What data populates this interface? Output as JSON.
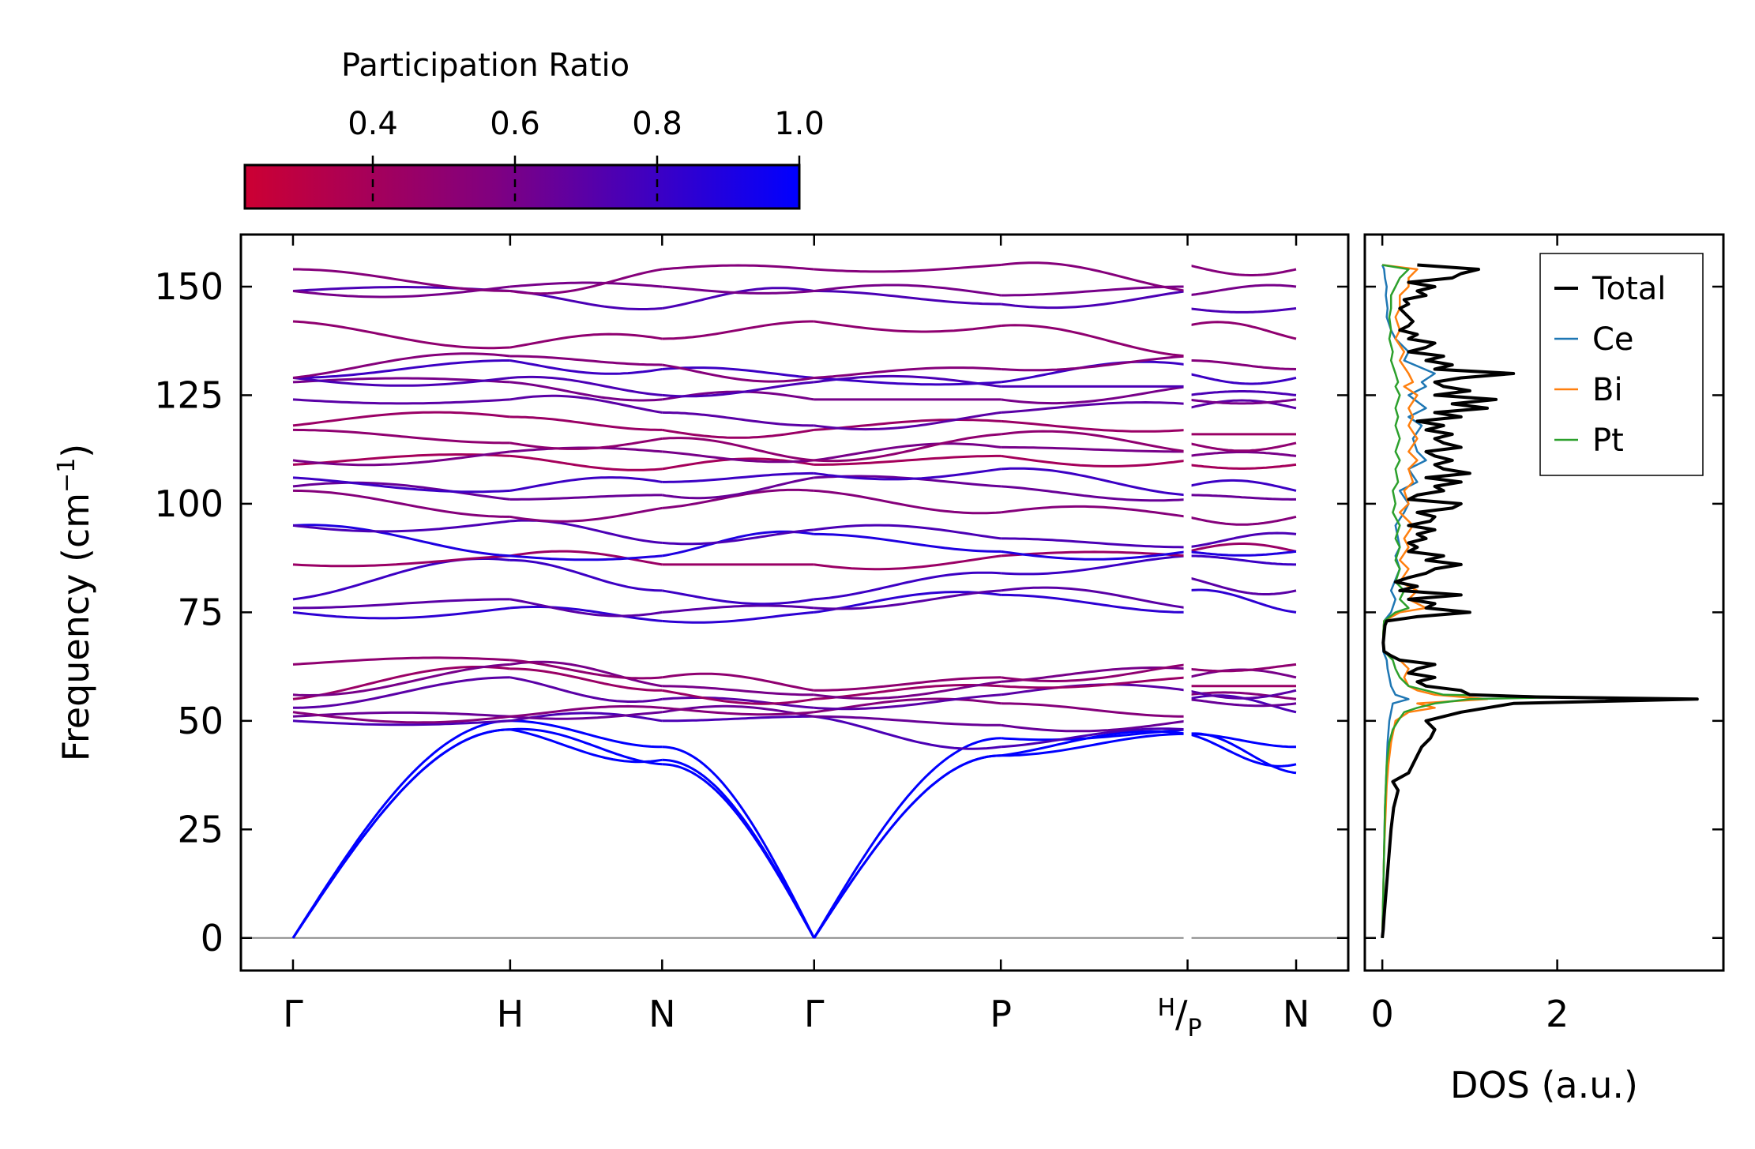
{
  "chart_data": [
    {
      "type": "line",
      "name": "phonon-band-structure",
      "ylabel": "Frequency (cm",
      "ylabel_sup": "−1",
      "ylabel_close": ")",
      "ylim": [
        -7.5,
        162
      ],
      "yticks": [
        0,
        25,
        50,
        75,
        100,
        125,
        150
      ],
      "ytick_labels": [
        "0",
        "25",
        "50",
        "75",
        "100",
        "125",
        "150"
      ],
      "xticks": [
        {
          "pos": 0.0,
          "label": "Γ"
        },
        {
          "pos": 1.0,
          "label": "H"
        },
        {
          "pos": 1.7,
          "label": "N"
        },
        {
          "pos": 2.4,
          "label": "Γ"
        },
        {
          "pos": 3.26,
          "label": "P"
        },
        {
          "pos": 4.12,
          "label": "H",
          "label2": "/",
          "label3": "P",
          "split": true
        },
        {
          "pos": 4.62,
          "label": "N"
        }
      ],
      "xlim": [
        -0.24,
        4.86
      ],
      "nodes": [
        "Γ",
        "H",
        "N",
        "Γ",
        "P",
        "H",
        "P",
        "N"
      ],
      "segments": [
        [
          0,
          1
        ],
        [
          1,
          2
        ],
        [
          2,
          3
        ],
        [
          3,
          4
        ],
        [
          4,
          5
        ],
        [
          6,
          7
        ]
      ],
      "branch_node_freqs": [
        [
          0,
          48,
          40,
          0,
          42,
          47,
          47,
          38
        ],
        [
          0,
          48,
          41,
          0,
          42,
          47,
          47,
          40
        ],
        [
          0,
          50,
          44,
          0,
          46,
          48,
          47,
          44
        ],
        [
          50,
          50,
          50,
          51,
          44,
          48,
          55,
          52
        ],
        [
          51,
          51,
          52,
          51,
          49,
          50,
          55,
          54
        ],
        [
          52,
          51,
          53,
          52,
          54,
          51,
          56,
          55
        ],
        [
          53,
          60,
          55,
          53,
          56,
          57,
          57,
          57
        ],
        [
          55,
          62,
          57,
          55,
          58,
          60,
          58,
          58
        ],
        [
          56,
          63,
          58,
          56,
          59,
          62,
          60,
          60
        ],
        [
          63,
          64,
          60,
          57,
          60,
          63,
          62,
          63
        ],
        [
          75,
          76,
          73,
          75,
          79,
          75,
          80,
          75
        ],
        [
          76,
          78,
          75,
          76,
          80,
          76,
          83,
          80
        ],
        [
          78,
          87,
          80,
          78,
          84,
          88,
          88,
          86
        ],
        [
          86,
          88,
          86,
          86,
          88,
          88,
          89,
          89
        ],
        [
          95,
          88,
          88,
          93,
          89,
          89,
          89,
          89
        ],
        [
          95,
          96,
          91,
          94,
          92,
          90,
          90,
          93
        ],
        [
          103,
          97,
          99,
          103,
          98,
          97,
          97,
          97
        ],
        [
          104,
          101,
          102,
          106,
          104,
          101,
          102,
          101
        ],
        [
          106,
          103,
          105,
          107,
          108,
          102,
          104,
          103
        ],
        [
          109,
          111,
          108,
          109,
          111,
          110,
          109,
          109
        ],
        [
          110,
          112,
          112,
          110,
          113,
          112,
          111,
          111
        ],
        [
          117,
          114,
          115,
          110,
          116,
          112,
          114,
          114
        ],
        [
          118,
          120,
          117,
          117,
          119,
          117,
          116,
          116
        ],
        [
          124,
          124,
          121,
          118,
          121,
          123,
          122,
          122
        ],
        [
          128,
          128,
          124,
          124,
          124,
          127,
          124,
          124
        ],
        [
          129,
          129,
          125,
          128,
          127,
          127,
          125,
          125
        ],
        [
          129,
          133,
          131,
          129,
          128,
          132,
          130,
          129
        ],
        [
          129,
          134,
          132,
          129,
          131,
          134,
          133,
          131
        ],
        [
          142,
          136,
          138,
          142,
          141,
          134,
          141,
          138
        ],
        [
          149,
          149,
          145,
          149,
          146,
          149,
          145,
          145
        ],
        [
          149,
          150,
          150,
          149,
          148,
          150,
          148,
          150
        ],
        [
          154,
          149,
          154,
          154,
          155,
          149,
          155,
          154
        ]
      ],
      "branch_participation": [
        1.0,
        1.0,
        1.0,
        0.75,
        0.65,
        0.55,
        0.7,
        0.45,
        0.6,
        0.5,
        0.85,
        0.7,
        0.8,
        0.45,
        0.9,
        0.75,
        0.55,
        0.65,
        0.8,
        0.4,
        0.6,
        0.5,
        0.45,
        0.7,
        0.6,
        0.75,
        0.8,
        0.55,
        0.5,
        0.75,
        0.6,
        0.55
      ]
    },
    {
      "type": "line",
      "name": "phonon-dos",
      "xlabel": "DOS (a.u.)",
      "xlim": [
        -0.2,
        3.9
      ],
      "xticks": [
        0,
        2
      ],
      "xtick_labels": [
        "0",
        "2"
      ],
      "ylim": [
        -7.5,
        162
      ],
      "legend_position": "top-right",
      "series": [
        {
          "name": "Total",
          "color": "#000000",
          "freq": [
            0,
            2,
            5,
            10,
            15,
            20,
            25,
            30,
            34,
            36,
            38,
            40,
            42,
            44,
            46,
            48,
            50,
            51,
            52,
            53,
            54,
            55,
            55.5,
            56,
            57,
            58,
            59,
            60,
            61,
            62,
            63,
            64,
            65,
            66,
            68,
            70,
            72,
            73,
            74,
            75,
            76,
            77,
            78,
            79,
            80,
            81,
            82,
            83,
            84,
            85,
            86,
            87,
            88,
            89,
            90,
            91,
            92,
            93,
            94,
            95,
            96,
            97,
            98,
            99,
            100,
            101,
            102,
            103,
            104,
            105,
            106,
            107,
            108,
            109,
            110,
            111,
            112,
            113,
            114,
            115,
            116,
            117,
            118,
            119,
            120,
            121,
            122,
            123,
            124,
            125,
            126,
            127,
            128,
            129,
            130,
            131,
            132,
            133,
            134,
            135,
            136,
            137,
            138,
            139,
            140,
            141,
            142,
            143,
            144,
            145,
            146,
            147,
            148,
            149,
            150,
            151,
            152,
            153,
            154,
            155
          ],
          "values": [
            0.0,
            0.01,
            0.02,
            0.04,
            0.06,
            0.08,
            0.1,
            0.13,
            0.18,
            0.12,
            0.3,
            0.35,
            0.4,
            0.45,
            0.55,
            0.6,
            0.5,
            0.7,
            0.9,
            1.2,
            1.5,
            3.6,
            1.8,
            1.0,
            0.9,
            0.5,
            0.4,
            0.6,
            0.3,
            0.4,
            0.6,
            0.2,
            0.1,
            0.02,
            0.01,
            0.02,
            0.03,
            0.05,
            0.4,
            1.0,
            0.5,
            0.6,
            0.3,
            0.9,
            0.2,
            0.4,
            0.15,
            0.3,
            0.5,
            0.6,
            0.9,
            0.5,
            0.7,
            0.3,
            0.4,
            0.3,
            0.5,
            0.4,
            0.6,
            0.3,
            0.55,
            0.6,
            0.4,
            0.8,
            0.9,
            0.3,
            0.4,
            0.7,
            0.6,
            0.9,
            0.5,
            1.0,
            0.7,
            0.6,
            0.8,
            0.6,
            0.5,
            0.9,
            0.7,
            0.6,
            0.8,
            0.5,
            0.7,
            0.4,
            0.9,
            0.6,
            1.2,
            0.8,
            1.3,
            0.6,
            1.0,
            0.7,
            0.6,
            0.9,
            1.5,
            0.6,
            0.8,
            0.5,
            0.7,
            0.3,
            0.5,
            0.6,
            0.3,
            0.4,
            0.2,
            0.3,
            0.35,
            0.3,
            0.25,
            0.2,
            0.3,
            0.25,
            0.5,
            0.4,
            0.6,
            0.3,
            0.8,
            0.9,
            1.1,
            0.4
          ]
        },
        {
          "name": "Ce",
          "color": "#1f77b4",
          "freq": [
            0,
            5,
            10,
            20,
            30,
            35,
            40,
            45,
            50,
            52,
            54,
            55,
            56,
            58,
            60,
            62,
            64,
            66,
            70,
            73,
            75,
            78,
            80,
            85,
            88,
            90,
            95,
            98,
            100,
            103,
            105,
            108,
            110,
            112,
            115,
            118,
            120,
            122,
            125,
            127,
            128,
            130,
            133,
            135,
            138,
            140,
            143,
            145,
            148,
            150,
            152,
            154,
            155
          ],
          "values": [
            0.0,
            0.005,
            0.01,
            0.02,
            0.03,
            0.04,
            0.05,
            0.06,
            0.08,
            0.1,
            0.12,
            0.3,
            0.15,
            0.1,
            0.08,
            0.06,
            0.05,
            0.01,
            0.01,
            0.02,
            0.1,
            0.15,
            0.1,
            0.2,
            0.15,
            0.2,
            0.15,
            0.25,
            0.3,
            0.2,
            0.4,
            0.3,
            0.5,
            0.4,
            0.35,
            0.45,
            0.3,
            0.5,
            0.3,
            0.5,
            0.45,
            0.6,
            0.25,
            0.3,
            0.15,
            0.1,
            0.05,
            0.06,
            0.04,
            0.05,
            0.03,
            0.02,
            0.0
          ]
        },
        {
          "name": "Bi",
          "color": "#ff7f0e",
          "freq": [
            0,
            5,
            10,
            20,
            30,
            35,
            40,
            45,
            50,
            52,
            53,
            54,
            55,
            56,
            57,
            58,
            60,
            62,
            64,
            66,
            70,
            73,
            75,
            76,
            78,
            80,
            82,
            85,
            87,
            90,
            92,
            95,
            98,
            100,
            103,
            105,
            108,
            110,
            112,
            115,
            118,
            120,
            122,
            125,
            127,
            128,
            130,
            133,
            135,
            138,
            140,
            143,
            145,
            148,
            150,
            152,
            154,
            155
          ],
          "values": [
            0.0,
            0.005,
            0.01,
            0.02,
            0.04,
            0.05,
            0.07,
            0.1,
            0.15,
            0.3,
            0.6,
            0.4,
            1.2,
            0.6,
            0.4,
            0.3,
            0.25,
            0.3,
            0.2,
            0.02,
            0.01,
            0.02,
            0.2,
            0.5,
            0.3,
            0.4,
            0.2,
            0.3,
            0.2,
            0.3,
            0.25,
            0.35,
            0.2,
            0.3,
            0.25,
            0.35,
            0.3,
            0.4,
            0.3,
            0.4,
            0.3,
            0.35,
            0.3,
            0.4,
            0.25,
            0.35,
            0.3,
            0.2,
            0.25,
            0.15,
            0.2,
            0.15,
            0.2,
            0.2,
            0.3,
            0.3,
            0.4,
            0.0
          ]
        },
        {
          "name": "Pt",
          "color": "#2ca02c",
          "freq": [
            0,
            5,
            10,
            20,
            30,
            35,
            40,
            45,
            48,
            50,
            52,
            53,
            54,
            55,
            55.5,
            56,
            57,
            58,
            60,
            62,
            64,
            66,
            70,
            73,
            75,
            76,
            78,
            80,
            82,
            85,
            87,
            90,
            92,
            95,
            98,
            100,
            103,
            105,
            108,
            110,
            112,
            115,
            118,
            120,
            122,
            125,
            127,
            128,
            130,
            133,
            135,
            138,
            140,
            143,
            145,
            148,
            150,
            152,
            154,
            155
          ],
          "values": [
            0.0,
            0.005,
            0.01,
            0.02,
            0.03,
            0.04,
            0.05,
            0.08,
            0.12,
            0.18,
            0.25,
            0.4,
            0.6,
            1.0,
            2.2,
            0.7,
            0.5,
            0.3,
            0.2,
            0.15,
            0.12,
            0.02,
            0.01,
            0.02,
            0.15,
            0.3,
            0.2,
            0.25,
            0.15,
            0.2,
            0.15,
            0.2,
            0.15,
            0.2,
            0.12,
            0.15,
            0.12,
            0.18,
            0.15,
            0.2,
            0.15,
            0.2,
            0.15,
            0.18,
            0.15,
            0.2,
            0.15,
            0.18,
            0.15,
            0.1,
            0.12,
            0.08,
            0.1,
            0.08,
            0.1,
            0.1,
            0.15,
            0.2,
            0.3,
            0.0
          ]
        }
      ]
    },
    {
      "type": "colorbar",
      "name": "participation-colorbar",
      "title": "Participation Ratio",
      "range": [
        0.22,
        1.0
      ],
      "ticks": [
        0.4,
        0.6,
        0.8,
        1.0
      ],
      "tick_labels": [
        "0.4",
        "0.6",
        "0.8",
        "1.0"
      ],
      "color_low": "#cc0033",
      "color_mid": "#800080",
      "color_high": "#0000ff"
    }
  ]
}
